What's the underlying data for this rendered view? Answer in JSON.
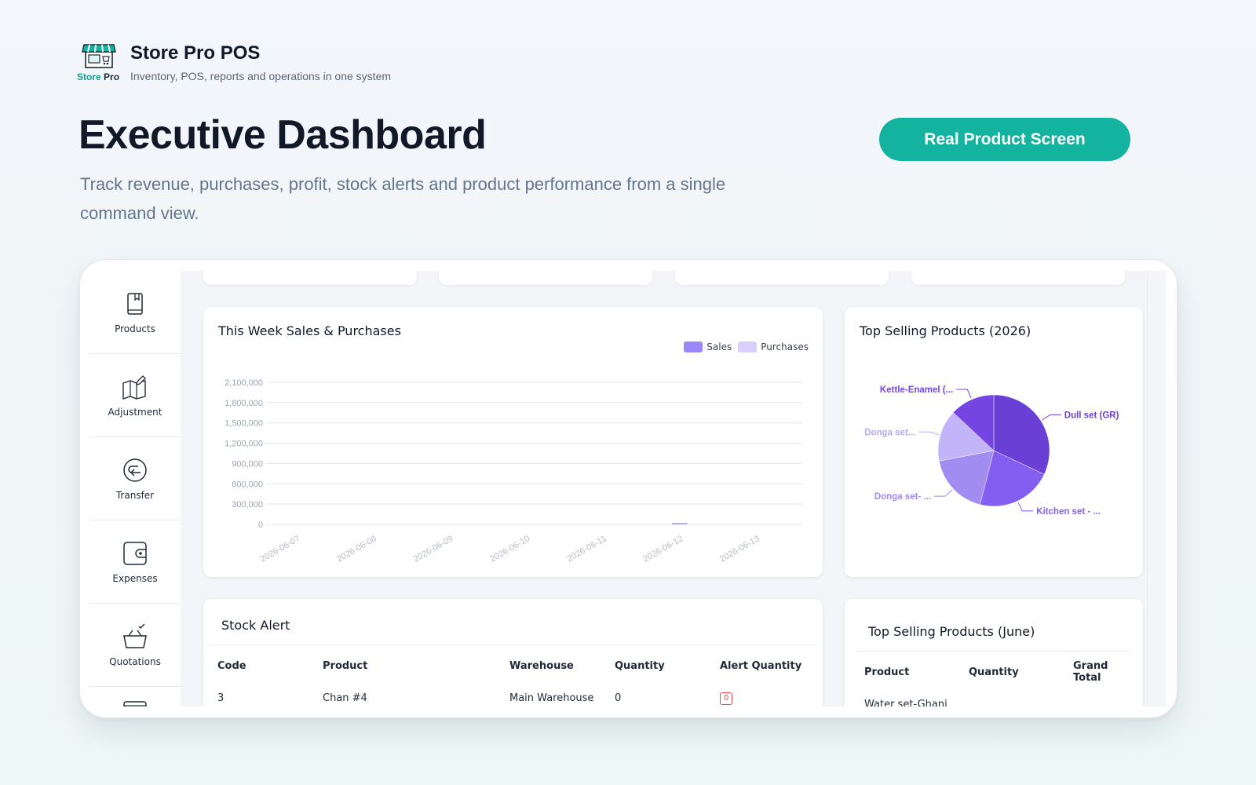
{
  "brand": {
    "logo_text_part1": "Store",
    "logo_text_part2": "Pro",
    "name": "Store Pro POS",
    "tagline": "Inventory, POS, reports and operations in one system"
  },
  "hero": {
    "title": "Executive Dashboard",
    "subtitle": "Track revenue, purchases, profit, stock alerts and product performance from a single command view.",
    "cta_label": "Real Product Screen"
  },
  "colors": {
    "accent": "#14b3a0",
    "sales": "#9b87f5",
    "purchases": "#d8cffd",
    "pie": [
      "#6a3fd6",
      "#845ef0",
      "#a18cf2",
      "#c2b4f8",
      "#7445e0"
    ]
  },
  "sidebar": {
    "items": [
      {
        "label": "Products",
        "icon": "book-icon"
      },
      {
        "label": "Adjustment",
        "icon": "map-edit-icon"
      },
      {
        "label": "Transfer",
        "icon": "transfer-icon"
      },
      {
        "label": "Expenses",
        "icon": "wallet-icon"
      },
      {
        "label": "Quotations",
        "icon": "basket-check-icon"
      }
    ]
  },
  "weekly_chart": {
    "title": "This Week Sales & Purchases",
    "legend": [
      "Sales",
      "Purchases"
    ]
  },
  "pie_chart": {
    "title": "Top Selling Products (2026)"
  },
  "stock_alert": {
    "title": "Stock Alert",
    "columns": [
      "Code",
      "Product",
      "Warehouse",
      "Quantity",
      "Alert Quantity"
    ],
    "rows": [
      {
        "code": "3",
        "product": "Chan #4",
        "warehouse": "Main Warehouse",
        "quantity": "0",
        "alert": "0"
      }
    ]
  },
  "top_june": {
    "title": "Top Selling Products (June)",
    "columns": [
      "Product",
      "Quantity",
      "Grand Total"
    ],
    "rows": [
      {
        "product": "Water set-Ghani",
        "quantity": "",
        "total": ""
      }
    ]
  },
  "chart_data": [
    {
      "type": "bar",
      "title": "This Week Sales & Purchases",
      "categories": [
        "2026-06-07",
        "2026-06-08",
        "2026-06-09",
        "2026-06-10",
        "2026-06-11",
        "2026-06-12",
        "2026-06-13"
      ],
      "series": [
        {
          "name": "Sales",
          "values": [
            0,
            0,
            0,
            0,
            0,
            12000,
            0
          ]
        },
        {
          "name": "Purchases",
          "values": [
            0,
            0,
            0,
            0,
            0,
            0,
            0
          ]
        }
      ],
      "yticks": [
        "0",
        "300,000",
        "600,000",
        "900,000",
        "1,200,000",
        "1,500,000",
        "1,800,000",
        "2,100,000"
      ],
      "ylim": [
        0,
        2100000
      ],
      "legend": "top-right",
      "grid": true
    },
    {
      "type": "pie",
      "title": "Top Selling Products (2026)",
      "labels": [
        "Dull set (GR)",
        "Kitchen set - ...",
        "Donga set- ...",
        "Donga set...",
        "Kettle-Enamel (..."
      ],
      "values": [
        32,
        22,
        18,
        15,
        13
      ]
    }
  ]
}
